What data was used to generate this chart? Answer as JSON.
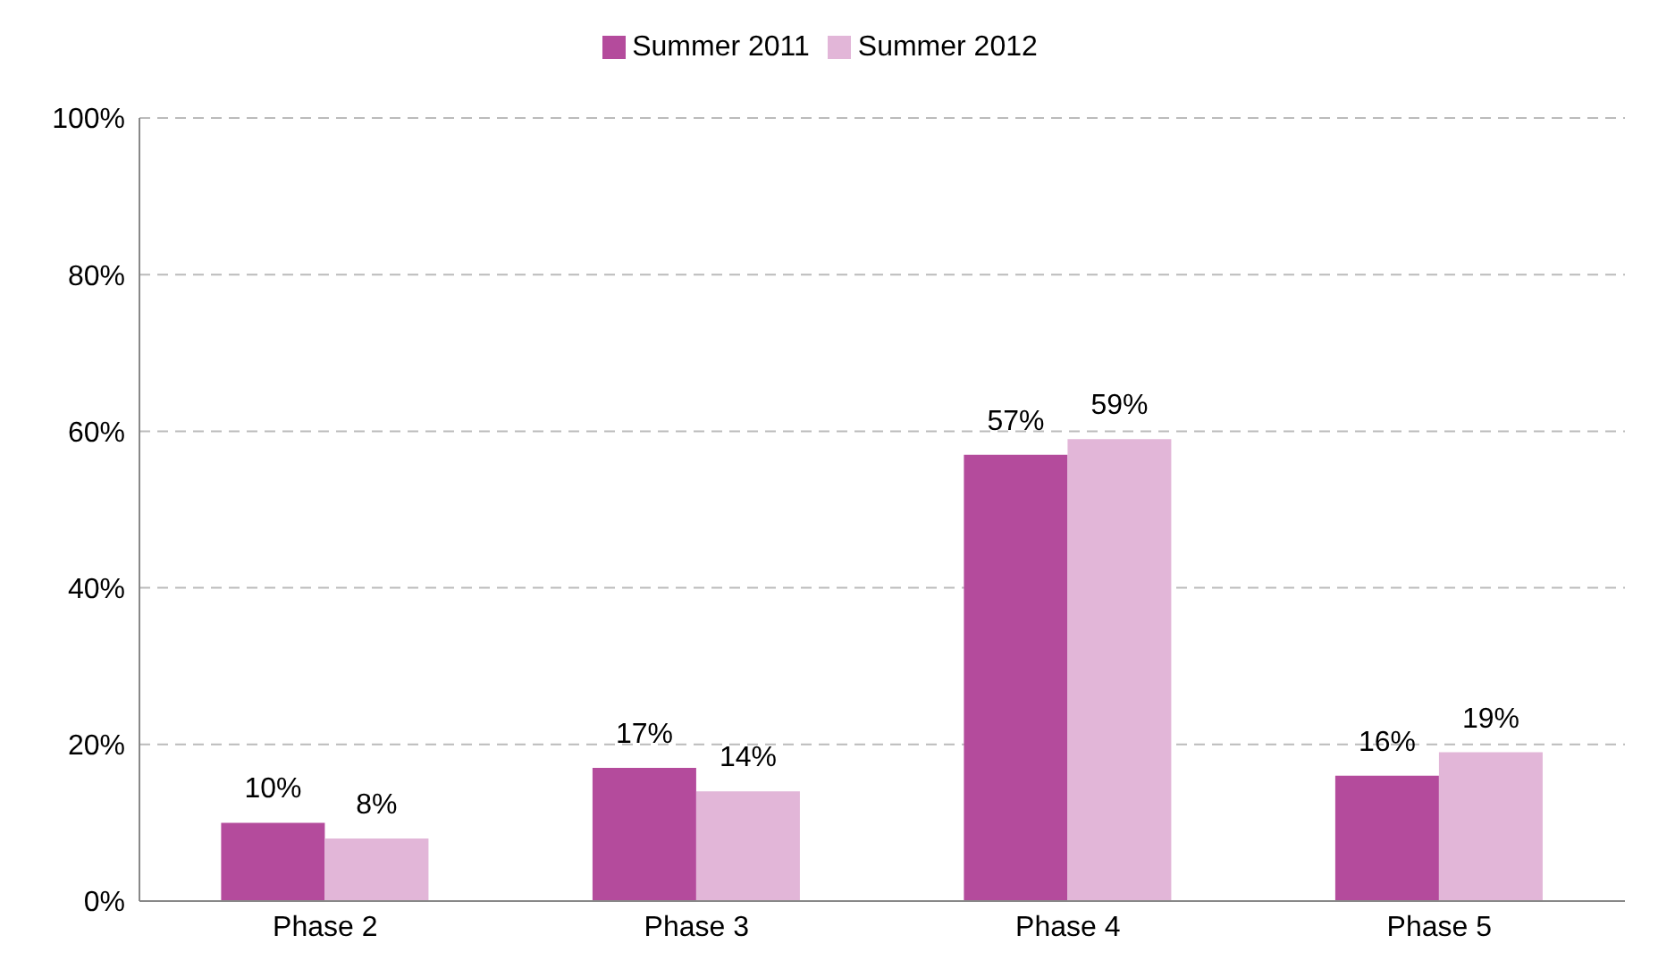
{
  "chart_data": {
    "type": "bar",
    "categories": [
      "Phase 2",
      "Phase 3",
      "Phase 4",
      "Phase 5"
    ],
    "series": [
      {
        "name": "Summer 2011",
        "color": "#b44b9c",
        "values": [
          10,
          17,
          57,
          16
        ]
      },
      {
        "name": "Summer 2012",
        "color": "#e2b6d8",
        "values": [
          8,
          14,
          59,
          19
        ]
      }
    ],
    "ylim": [
      0,
      100
    ],
    "yticks": [
      {
        "value": 0,
        "label": "0%"
      },
      {
        "value": 20,
        "label": "20%"
      },
      {
        "value": 40,
        "label": "40%"
      },
      {
        "value": 60,
        "label": "60%"
      },
      {
        "value": 80,
        "label": "80%"
      },
      {
        "value": 100,
        "label": "100%"
      }
    ],
    "value_labels": [
      [
        "10%",
        "17%",
        "57%",
        "16%"
      ],
      [
        "8%",
        "14%",
        "59%",
        "19%"
      ]
    ],
    "grid": "y",
    "legend": "top"
  }
}
